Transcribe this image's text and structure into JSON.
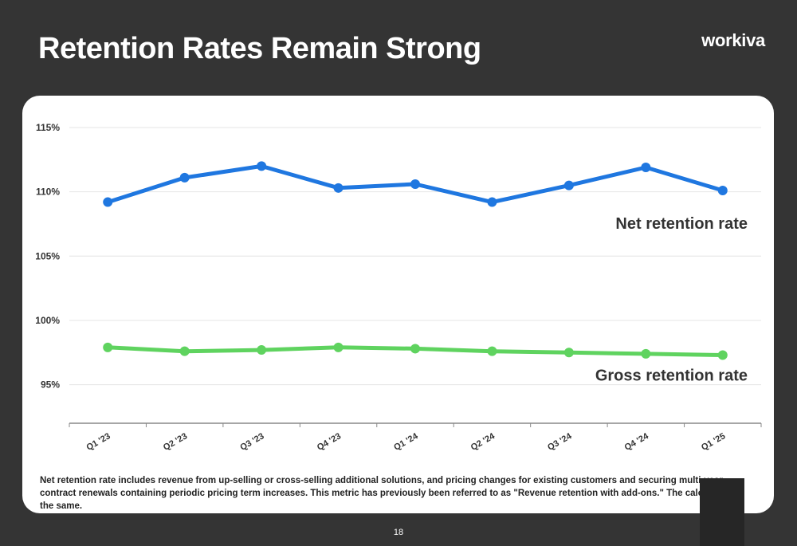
{
  "slide": {
    "title": "Retention Rates Remain Strong",
    "logo_text": "workiva",
    "footnote": "Net retention rate includes revenue from up-selling or cross-selling additional solutions, and pricing changes for existing customers and securing multi-year contract renewals containing periodic pricing term increases. This metric has previously been referred to as \"Revenue retention with add-ons.\" The calculation is the same.",
    "page_number": "18"
  },
  "colors": {
    "background": "#343434",
    "card": "#ffffff",
    "net_series": "#1f77e0",
    "gross_series": "#5fd35f"
  },
  "chart_data": {
    "type": "line",
    "title": "",
    "xlabel": "",
    "ylabel": "",
    "categories": [
      "Q1 '23",
      "Q2 '23",
      "Q3 '23",
      "Q4 '23",
      "Q1 '24",
      "Q2 '24",
      "Q3 '24",
      "Q4 '24",
      "Q1 '25"
    ],
    "ylim": [
      92,
      115
    ],
    "yticks": [
      95,
      100,
      105,
      110,
      115
    ],
    "ytick_labels": [
      "95%",
      "100%",
      "105%",
      "110%",
      "115%"
    ],
    "grid": true,
    "series": [
      {
        "name": "Net retention rate",
        "color": "#1f77e0",
        "values": [
          109.2,
          111.1,
          112.0,
          110.3,
          110.6,
          109.2,
          110.5,
          111.9,
          110.1
        ]
      },
      {
        "name": "Gross retention rate",
        "color": "#5fd35f",
        "values": [
          97.9,
          97.6,
          97.7,
          97.9,
          97.8,
          97.6,
          97.5,
          97.4,
          97.3
        ]
      }
    ]
  }
}
